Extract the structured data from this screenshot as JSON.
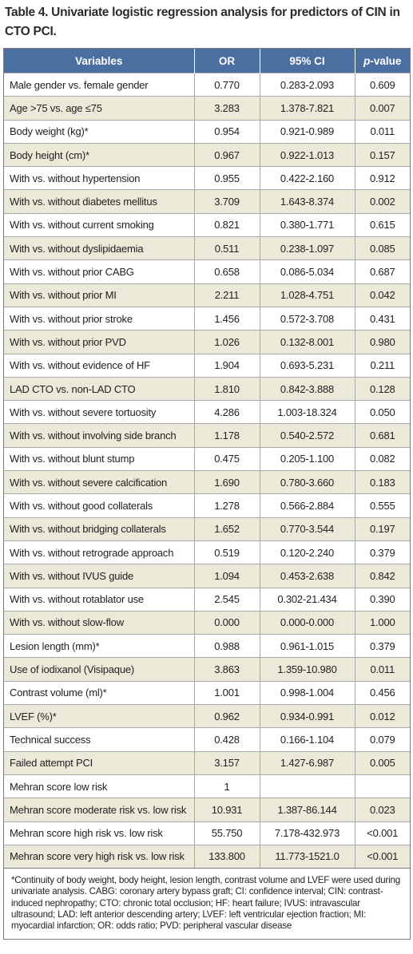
{
  "caption": "Table 4. Univariate logistic regression analysis for predictors of CIN in CTO PCI.",
  "headers": [
    "Variables",
    "OR",
    "95% CI",
    "p-value"
  ],
  "rows": [
    [
      "Male gender vs. female gender",
      "0.770",
      "0.283-2.093",
      "0.609"
    ],
    [
      "Age >75 vs. age ≤75",
      "3.283",
      "1.378-7.821",
      "0.007"
    ],
    [
      "Body weight (kg)*",
      "0.954",
      "0.921-0.989",
      "0.011"
    ],
    [
      "Body height (cm)*",
      "0.967",
      "0.922-1.013",
      "0.157"
    ],
    [
      "With vs. without hypertension",
      "0.955",
      "0.422-2.160",
      "0.912"
    ],
    [
      "With vs. without diabetes mellitus",
      "3.709",
      "1.643-8.374",
      "0.002"
    ],
    [
      "With vs. without current smoking",
      "0.821",
      "0.380-1.771",
      "0.615"
    ],
    [
      "With vs. without dyslipidaemia",
      "0.511",
      "0.238-1.097",
      "0.085"
    ],
    [
      "With vs. without prior CABG",
      "0.658",
      "0.086-5.034",
      "0.687"
    ],
    [
      "With vs. without prior MI",
      "2.211",
      "1.028-4.751",
      "0.042"
    ],
    [
      "With vs. without prior stroke",
      "1.456",
      "0.572-3.708",
      "0.431"
    ],
    [
      "With vs. without prior PVD",
      "1.026",
      "0.132-8.001",
      "0.980"
    ],
    [
      "With vs. without evidence of HF",
      "1.904",
      "0.693-5.231",
      "0.211"
    ],
    [
      "LAD CTO vs. non-LAD CTO",
      "1.810",
      "0.842-3.888",
      "0.128"
    ],
    [
      "With vs. without severe tortuosity",
      "4.286",
      "1.003-18.324",
      "0.050"
    ],
    [
      "With vs. without involving side branch",
      "1.178",
      "0.540-2.572",
      "0.681"
    ],
    [
      "With vs. without blunt stump",
      "0.475",
      "0.205-1.100",
      "0.082"
    ],
    [
      "With vs. without severe calcification",
      "1.690",
      "0.780-3.660",
      "0.183"
    ],
    [
      "With vs. without good collaterals",
      "1.278",
      "0.566-2.884",
      "0.555"
    ],
    [
      "With vs. without bridging collaterals",
      "1.652",
      "0.770-3.544",
      "0.197"
    ],
    [
      "With vs. without retrograde approach",
      "0.519",
      "0.120-2.240",
      "0.379"
    ],
    [
      "With vs. without IVUS guide",
      "1.094",
      "0.453-2.638",
      "0.842"
    ],
    [
      "With vs. without rotablator use",
      "2.545",
      "0.302-21.434",
      "0.390"
    ],
    [
      "With vs. without slow-flow",
      "0.000",
      "0.000-0.000",
      "1.000"
    ],
    [
      "Lesion length (mm)*",
      "0.988",
      "0.961-1.015",
      "0.379"
    ],
    [
      "Use of iodixanol (Visipaque)",
      "3.863",
      "1.359-10.980",
      "0.011"
    ],
    [
      "Contrast volume (ml)*",
      "1.001",
      "0.998-1.004",
      "0.456"
    ],
    [
      "LVEF (%)*",
      "0.962",
      "0.934-0.991",
      "0.012"
    ],
    [
      "Technical success",
      "0.428",
      "0.166-1.104",
      "0.079"
    ],
    [
      "Failed attempt PCI",
      "3.157",
      "1.427-6.987",
      "0.005"
    ],
    [
      "Mehran score low risk",
      "1",
      "",
      ""
    ],
    [
      "Mehran score moderate risk vs. low risk",
      "10.931",
      "1.387-86.144",
      "0.023"
    ],
    [
      "Mehran score high risk vs. low risk",
      "55.750",
      "7.178-432.973",
      "<0.001"
    ],
    [
      "Mehran score very high risk vs. low risk",
      "133.800",
      "11.773-1521.0",
      "<0.001"
    ]
  ],
  "footnote": "*Continuity of body weight, body height, lesion length, contrast volume and LVEF were used during univariate analysis. CABG: coronary artery bypass graft; CI: confidence interval; CIN: contrast-induced nephropathy; CTO: chronic total occlusion; HF: heart failure; IVUS: intravascular ultrasound; LAD: left anterior descending artery; LVEF: left ventricular ejection fraction; MI: myocardial infarction; OR: odds ratio; PVD: peripheral vascular disease",
  "colors": {
    "header_bg": "#4a6fa0",
    "header_text": "#ffffff",
    "stripe": "#ebe9d8"
  }
}
